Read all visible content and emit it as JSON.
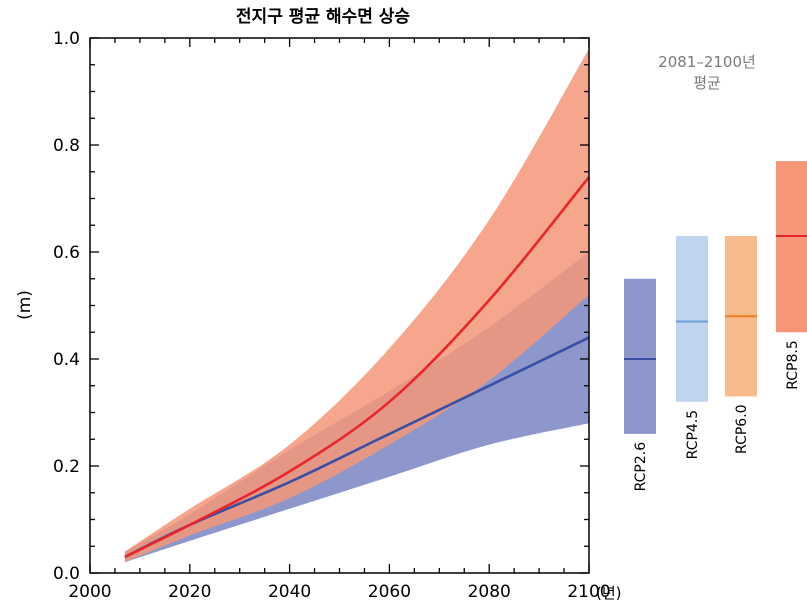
{
  "chart_data": {
    "type": "area",
    "title": "전지구 평균 해수면 상승",
    "ylabel": "(m)",
    "xunit": "(년)",
    "xlim": [
      2000,
      2100
    ],
    "ylim": [
      0.0,
      1.0
    ],
    "xticks": [
      2000,
      2020,
      2040,
      2060,
      2080,
      2100
    ],
    "yticks": [
      "0.0",
      "0.2",
      "0.4",
      "0.6",
      "0.8",
      "1.0"
    ],
    "grid": false,
    "series": [
      {
        "name": "RCP2.6",
        "color": "#3a4fa3",
        "band_color": "#8d97cb",
        "x": [
          2007,
          2020,
          2040,
          2060,
          2080,
          2100
        ],
        "mean": [
          0.03,
          0.09,
          0.17,
          0.26,
          0.35,
          0.44
        ],
        "lower": [
          0.02,
          0.06,
          0.12,
          0.18,
          0.24,
          0.28
        ],
        "upper": [
          0.04,
          0.11,
          0.23,
          0.34,
          0.46,
          0.6
        ]
      },
      {
        "name": "RCP8.5",
        "color": "#e8262b",
        "band_color": "#f59679",
        "x": [
          2007,
          2020,
          2040,
          2060,
          2080,
          2100
        ],
        "mean": [
          0.03,
          0.09,
          0.19,
          0.32,
          0.51,
          0.74
        ],
        "lower": [
          0.02,
          0.07,
          0.14,
          0.24,
          0.36,
          0.52
        ],
        "upper": [
          0.04,
          0.12,
          0.24,
          0.42,
          0.66,
          0.98
        ]
      }
    ],
    "period_label": [
      "2081–2100년",
      "평균"
    ],
    "period_bars": [
      {
        "name": "RCP2.6",
        "mean": 0.4,
        "low": 0.26,
        "high": 0.55,
        "fill": "#8d97cb",
        "line": "#3a4fa3"
      },
      {
        "name": "RCP4.5",
        "mean": 0.47,
        "low": 0.32,
        "high": 0.63,
        "fill": "#bfd4ee",
        "line": "#6d9fd6"
      },
      {
        "name": "RCP6.0",
        "mean": 0.48,
        "low": 0.33,
        "high": 0.63,
        "fill": "#f8bb8b",
        "line": "#ef7b22"
      },
      {
        "name": "RCP8.5",
        "mean": 0.63,
        "low": 0.45,
        "high": 0.77,
        "fill": "#f59679",
        "line": "#e8262b"
      }
    ]
  }
}
